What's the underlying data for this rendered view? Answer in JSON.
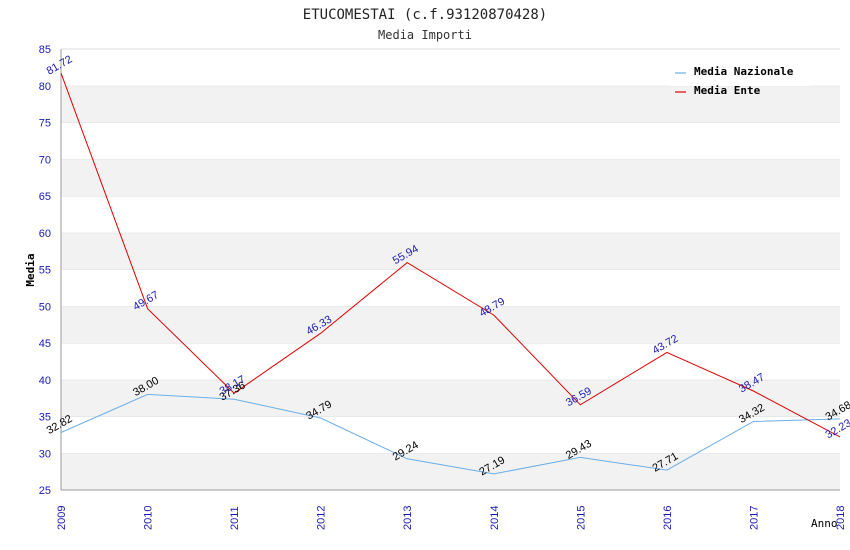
{
  "chart_data": {
    "type": "line",
    "title": "ETUCOMESTAI (c.f.93120870428)",
    "subtitle": "Media Importi",
    "ylabel": "Media",
    "xlabel": "Anno",
    "ylim": [
      25,
      85
    ],
    "yticks": [
      25,
      30,
      35,
      40,
      45,
      50,
      55,
      60,
      65,
      70,
      75,
      80,
      85
    ],
    "categories": [
      "2009",
      "2010",
      "2011",
      "2012",
      "2013",
      "2014",
      "2015",
      "2016",
      "2017",
      "2018"
    ],
    "grid": "horizontal-bands",
    "legend_position": "top-right",
    "series": [
      {
        "name": "Media Nazionale",
        "color": "#6aaee8",
        "values": [
          32.82,
          38.0,
          37.36,
          34.79,
          29.24,
          27.19,
          29.43,
          27.71,
          34.32,
          34.68
        ],
        "labels": [
          "32.82",
          "38.00",
          "37.36",
          "34.79",
          "29.24",
          "27.19",
          "29.43",
          "27.71",
          "34.32",
          "34.68"
        ]
      },
      {
        "name": "Media Ente",
        "color": "#e00000",
        "values": [
          81.72,
          49.67,
          38.17,
          46.33,
          55.94,
          48.79,
          36.59,
          43.72,
          38.47,
          32.23
        ],
        "labels": [
          "81.72",
          "49.67",
          "38.17",
          "46.33",
          "55.94",
          "48.79",
          "36.59",
          "43.72",
          "38.47",
          "32.23"
        ]
      }
    ]
  }
}
